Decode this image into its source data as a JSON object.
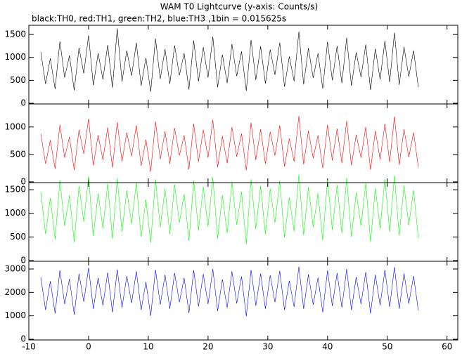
{
  "chart_data": {
    "type": "line",
    "title": "WAM T0 Lightcurve (y-axis: Counts/s)",
    "subtitle": "black:TH0, red:TH1, green:TH2, blue:TH3 ,1bin = 0.015625s",
    "xlim": [
      -10,
      61.8
    ],
    "xticks": [
      -10,
      0,
      10,
      20,
      30,
      40,
      50,
      60
    ],
    "x": [
      -8,
      -7.2,
      -6.4,
      -5.6,
      -4.8,
      -4,
      -3.2,
      -2.4,
      -1.6,
      -0.8,
      0,
      0.8,
      1.6,
      2.4,
      3.2,
      4,
      4.8,
      5.6,
      6.4,
      7.2,
      8,
      8.8,
      9.6,
      10.4,
      11.2,
      12,
      12.8,
      13.6,
      14.4,
      15.2,
      16,
      16.8,
      17.6,
      18.4,
      19.2,
      20,
      20.8,
      21.6,
      22.4,
      23.2,
      24,
      24.8,
      25.6,
      26.4,
      27.2,
      28,
      28.8,
      29.6,
      30.4,
      31.2,
      32,
      32.8,
      33.6,
      34.4,
      35.2,
      36,
      36.8,
      37.6,
      38.4,
      39.2,
      40,
      40.8,
      41.6,
      42.4,
      43.2,
      44,
      44.8,
      45.6,
      46.4,
      47.2,
      48,
      48.8,
      49.6,
      50.4,
      51.2,
      52,
      52.8,
      53.6,
      54.4,
      55.2
    ],
    "series": [
      {
        "color": "#000000",
        "ylim": [
          -15,
          1700
        ],
        "yticks": [
          0,
          500,
          1000,
          1500
        ],
        "values": [
          1120,
          420,
          980,
          310,
          1350,
          560,
          1040,
          280,
          1210,
          650,
          1480,
          390,
          1090,
          520,
          1270,
          340,
          1630,
          470,
          1150,
          600,
          1320,
          380,
          990,
          250,
          1410,
          530,
          1180,
          420,
          1260,
          610,
          1090,
          300,
          1370,
          480,
          1220,
          560,
          1450,
          350,
          1060,
          440,
          1290,
          590,
          1130,
          270,
          1380,
          510,
          1240,
          430,
          1170,
          620,
          1320,
          360,
          1020,
          480,
          1560,
          410,
          1200,
          550,
          1090,
          320,
          1340,
          500,
          1250,
          440,
          1430,
          380,
          1110,
          570,
          1280,
          290,
          1190,
          520,
          1360,
          460,
          1540,
          400,
          1230,
          580,
          1150,
          350
        ]
      },
      {
        "color": "#ff0000",
        "ylim": [
          -14,
          1420
        ],
        "yticks": [
          0,
          500,
          1000
        ],
        "values": [
          880,
          330,
          760,
          240,
          1040,
          440,
          820,
          210,
          950,
          510,
          1150,
          300,
          850,
          400,
          990,
          260,
          1090,
          370,
          900,
          470,
          1030,
          290,
          770,
          190,
          1100,
          410,
          920,
          330,
          980,
          480,
          850,
          230,
          1060,
          370,
          950,
          440,
          1130,
          270,
          830,
          340,
          1000,
          460,
          880,
          210,
          1080,
          400,
          960,
          330,
          910,
          480,
          1030,
          280,
          790,
          370,
          1200,
          320,
          930,
          430,
          850,
          250,
          1040,
          390,
          970,
          340,
          1110,
          300,
          860,
          440,
          1000,
          220,
          930,
          410,
          1060,
          360,
          1190,
          310,
          960,
          450,
          900,
          270
        ]
      },
      {
        "color": "#00ff00",
        "ylim": [
          -15,
          1650
        ],
        "yticks": [
          0,
          500,
          1000,
          1500
        ],
        "values": [
          1450,
          560,
          1320,
          450,
          1700,
          730,
          1380,
          390,
          1580,
          820,
          1780,
          520,
          1420,
          680,
          1630,
          460,
          1740,
          610,
          1490,
          780,
          1650,
          500,
          1290,
          380,
          1720,
          700,
          1520,
          560,
          1610,
          800,
          1410,
          420,
          1690,
          640,
          1560,
          720,
          1760,
          470,
          1380,
          580,
          1660,
          760,
          1460,
          350,
          1720,
          670,
          1580,
          560,
          1520,
          800,
          1690,
          490,
          1340,
          620,
          1820,
          540,
          1550,
          710,
          1420,
          430,
          1710,
          650,
          1600,
          580,
          1750,
          500,
          1440,
          740,
          1640,
          400,
          1530,
          680,
          1730,
          610,
          1800,
          530,
          1590,
          750,
          1490,
          470
        ]
      },
      {
        "color": "#0000ff",
        "ylim": [
          -30,
          3330
        ],
        "yticks": [
          0,
          1000,
          2000,
          3000
        ],
        "values": [
          2650,
          1250,
          2480,
          1100,
          2950,
          1500,
          2580,
          1050,
          2800,
          1600,
          3050,
          1300,
          2620,
          1450,
          2850,
          1150,
          2980,
          1350,
          2700,
          1550,
          2900,
          1250,
          2450,
          1000,
          2970,
          1480,
          2750,
          1300,
          2830,
          1580,
          2620,
          1120,
          2950,
          1400,
          2780,
          1500,
          3000,
          1200,
          2560,
          1350,
          2900,
          1530,
          2680,
          980,
          2960,
          1430,
          2800,
          1300,
          2730,
          1580,
          2920,
          1250,
          2500,
          1380,
          3100,
          1300,
          2770,
          1470,
          2630,
          1150,
          2940,
          1420,
          2830,
          1350,
          3000,
          1250,
          2660,
          1500,
          2870,
          1100,
          2750,
          1450,
          2960,
          1380,
          3080,
          1300,
          2810,
          1520,
          2700,
          1220
        ]
      }
    ]
  }
}
